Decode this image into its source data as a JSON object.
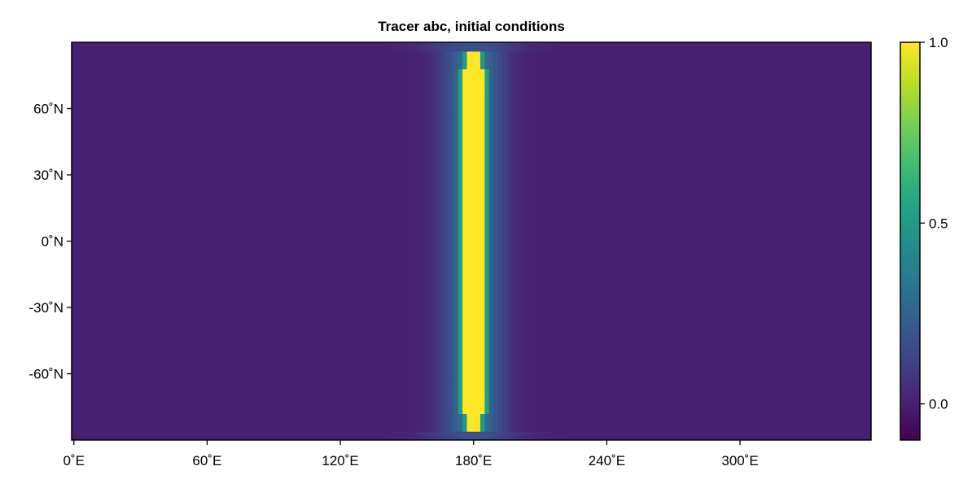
{
  "chart_data": {
    "type": "heatmap",
    "title": "Tracer abc, initial conditions",
    "xlabel": "",
    "ylabel": "",
    "x_ticks": [
      {
        "value": 0,
        "label": "0˚E"
      },
      {
        "value": 60,
        "label": "60˚E"
      },
      {
        "value": 120,
        "label": "120˚E"
      },
      {
        "value": 180,
        "label": "180˚E"
      },
      {
        "value": 240,
        "label": "240˚E"
      },
      {
        "value": 300,
        "label": "300˚E"
      }
    ],
    "y_ticks": [
      {
        "value": 60,
        "label": "60˚N"
      },
      {
        "value": 30,
        "label": "30˚N"
      },
      {
        "value": 0,
        "label": "0˚N"
      },
      {
        "value": -30,
        "label": "-30˚N"
      },
      {
        "value": -60,
        "label": "-60˚N"
      }
    ],
    "xlim": [
      -1,
      359
    ],
    "ylim": [
      -90,
      90
    ],
    "field": {
      "description_of_values": "Tracer concentration: ~1.0 in a meridional band centered at 180˚E (half-width ~5˚, Gaussian-like edges out to ~15˚), ~0.0 elsewhere; band narrows near the poles.",
      "band_center_lon": 180,
      "band_peak_value": 1.0,
      "background_value": 0.0,
      "band_lat_extent": [
        -82,
        82
      ]
    },
    "colorbar": {
      "colormap": "viridis",
      "range": [
        -0.1,
        1.0
      ],
      "ticks": [
        {
          "value": 1.0,
          "label": "1.0"
        },
        {
          "value": 0.5,
          "label": "0.5"
        },
        {
          "value": 0.0,
          "label": "0.0"
        }
      ]
    },
    "grid": false
  }
}
